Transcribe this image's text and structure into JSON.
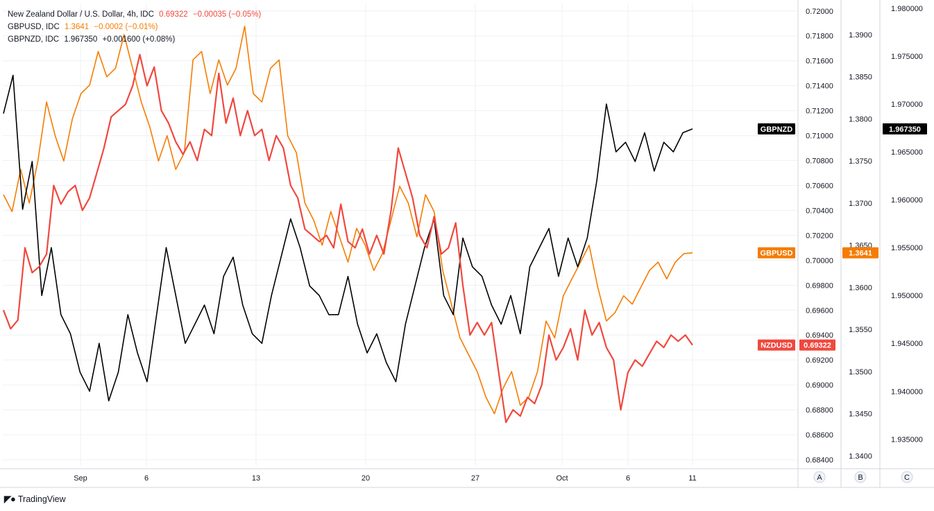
{
  "legend": {
    "nzdusd": {
      "name": "New Zealand Dollar / U.S. Dollar, 4h, IDC",
      "last": "0.69322",
      "change": "−0.00035 (−0.05%)"
    },
    "gbpusd": {
      "name": "GBPUSD, IDC",
      "last": "1.3641",
      "change": "−0.0002 (−0.01%)"
    },
    "gbpnzd": {
      "name": "GBPNZD, IDC",
      "last": "1.967350",
      "change": "+0.001600 (+0.08%)"
    }
  },
  "footer": {
    "brand": "TradingView"
  },
  "colors": {
    "nzdusd": "#f0483e",
    "gbpusd": "#f57c00",
    "gbpnzd": "#000000",
    "grid": "#eef0f3",
    "axis_line": "#d1d4dc"
  },
  "chart_data": {
    "type": "line",
    "x_ticks": [
      "Sep",
      "6",
      "13",
      "20",
      "27",
      "Oct",
      "6",
      "11"
    ],
    "axis_letters": [
      "A",
      "B",
      "C"
    ],
    "axes": {
      "A": {
        "ticks": [
          "0.72000",
          "0.71800",
          "0.71600",
          "0.71400",
          "0.71200",
          "0.71000",
          "0.70800",
          "0.70600",
          "0.70400",
          "0.70200",
          "0.70000",
          "0.69800",
          "0.69600",
          "0.69400",
          "0.69200",
          "0.69000",
          "0.68800",
          "0.68600",
          "0.68400"
        ],
        "ylim": [
          0.6835,
          0.7206
        ]
      },
      "B": {
        "ticks": [
          "1.3900",
          "1.3850",
          "1.3800",
          "1.3750",
          "1.3700",
          "1.3650",
          "1.3600",
          "1.3550",
          "1.3500",
          "1.3450",
          "1.3400"
        ],
        "ylim": [
          1.3388,
          1.3937
        ]
      },
      "C": {
        "ticks": [
          "1.980000",
          "1.975000",
          "1.970000",
          "1.965000",
          "1.960000",
          "1.955000",
          "1.950000",
          "1.945000",
          "1.940000",
          "1.935000"
        ],
        "ylim": [
          1.9322,
          1.9805
        ]
      }
    },
    "series": [
      {
        "name": "NZDUSD",
        "axis": "A",
        "tag": "NZDUSD",
        "last_label": "0.69322",
        "values": [
          0.696,
          0.6945,
          0.6952,
          0.701,
          0.699,
          0.6995,
          0.7005,
          0.706,
          0.7045,
          0.7055,
          0.706,
          0.704,
          0.705,
          0.707,
          0.709,
          0.7115,
          0.712,
          0.7125,
          0.714,
          0.7165,
          0.714,
          0.7155,
          0.712,
          0.711,
          0.7095,
          0.7085,
          0.7095,
          0.708,
          0.7105,
          0.71,
          0.715,
          0.711,
          0.713,
          0.71,
          0.712,
          0.71,
          0.7105,
          0.708,
          0.71,
          0.709,
          0.706,
          0.705,
          0.7025,
          0.702,
          0.7015,
          0.702,
          0.701,
          0.7045,
          0.7015,
          0.701,
          0.7025,
          0.7005,
          0.702,
          0.7005,
          0.704,
          0.709,
          0.707,
          0.705,
          0.702,
          0.701,
          0.7035,
          0.7005,
          0.701,
          0.703,
          0.698,
          0.694,
          0.695,
          0.694,
          0.695,
          0.691,
          0.687,
          0.688,
          0.6875,
          0.689,
          0.6885,
          0.69,
          0.694,
          0.692,
          0.693,
          0.6945,
          0.692,
          0.696,
          0.694,
          0.695,
          0.693,
          0.692,
          0.688,
          0.691,
          0.692,
          0.6915,
          0.6925,
          0.6935,
          0.693,
          0.694,
          0.6935,
          0.694,
          0.6932
        ]
      },
      {
        "name": "GBPUSD",
        "axis": "B",
        "tag": "GBPUSD",
        "last_label": "1.3641",
        "values": [
          1.371,
          1.369,
          1.374,
          1.37,
          1.375,
          1.382,
          1.378,
          1.375,
          1.38,
          1.383,
          1.384,
          1.388,
          1.385,
          1.386,
          1.39,
          1.386,
          1.382,
          1.379,
          1.375,
          1.378,
          1.374,
          1.376,
          1.387,
          1.388,
          1.383,
          1.387,
          1.384,
          1.386,
          1.391,
          1.383,
          1.382,
          1.386,
          1.387,
          1.378,
          1.376,
          1.37,
          1.368,
          1.365,
          1.369,
          1.366,
          1.363,
          1.367,
          1.365,
          1.362,
          1.364,
          1.368,
          1.372,
          1.37,
          1.366,
          1.371,
          1.369,
          1.362,
          1.358,
          1.354,
          1.352,
          1.35,
          1.347,
          1.345,
          1.348,
          1.35,
          1.346,
          1.347,
          1.35,
          1.356,
          1.354,
          1.359,
          1.361,
          1.363,
          1.365,
          1.36,
          1.356,
          1.357,
          1.359,
          1.358,
          1.36,
          1.362,
          1.363,
          1.361,
          1.363,
          1.364,
          1.3641
        ]
      },
      {
        "name": "GBPNZD",
        "axis": "C",
        "tag": "GBPNZD",
        "last_label": "1.967350",
        "values": [
          1.969,
          1.973,
          1.959,
          1.964,
          1.95,
          1.955,
          1.948,
          1.946,
          1.942,
          1.94,
          1.945,
          1.939,
          1.942,
          1.948,
          1.944,
          1.941,
          1.948,
          1.955,
          1.95,
          1.945,
          1.947,
          1.949,
          1.946,
          1.952,
          1.954,
          1.949,
          1.946,
          1.945,
          1.95,
          1.954,
          1.958,
          1.955,
          1.951,
          1.95,
          1.948,
          1.948,
          1.952,
          1.947,
          1.944,
          1.946,
          1.943,
          1.941,
          1.947,
          1.951,
          1.955,
          1.958,
          1.95,
          1.948,
          1.956,
          1.953,
          1.952,
          1.949,
          1.947,
          1.95,
          1.946,
          1.953,
          1.955,
          1.957,
          1.952,
          1.956,
          1.953,
          1.956,
          1.962,
          1.97,
          1.965,
          1.966,
          1.964,
          1.967,
          1.963,
          1.966,
          1.965,
          1.967,
          1.9674
        ]
      }
    ]
  }
}
